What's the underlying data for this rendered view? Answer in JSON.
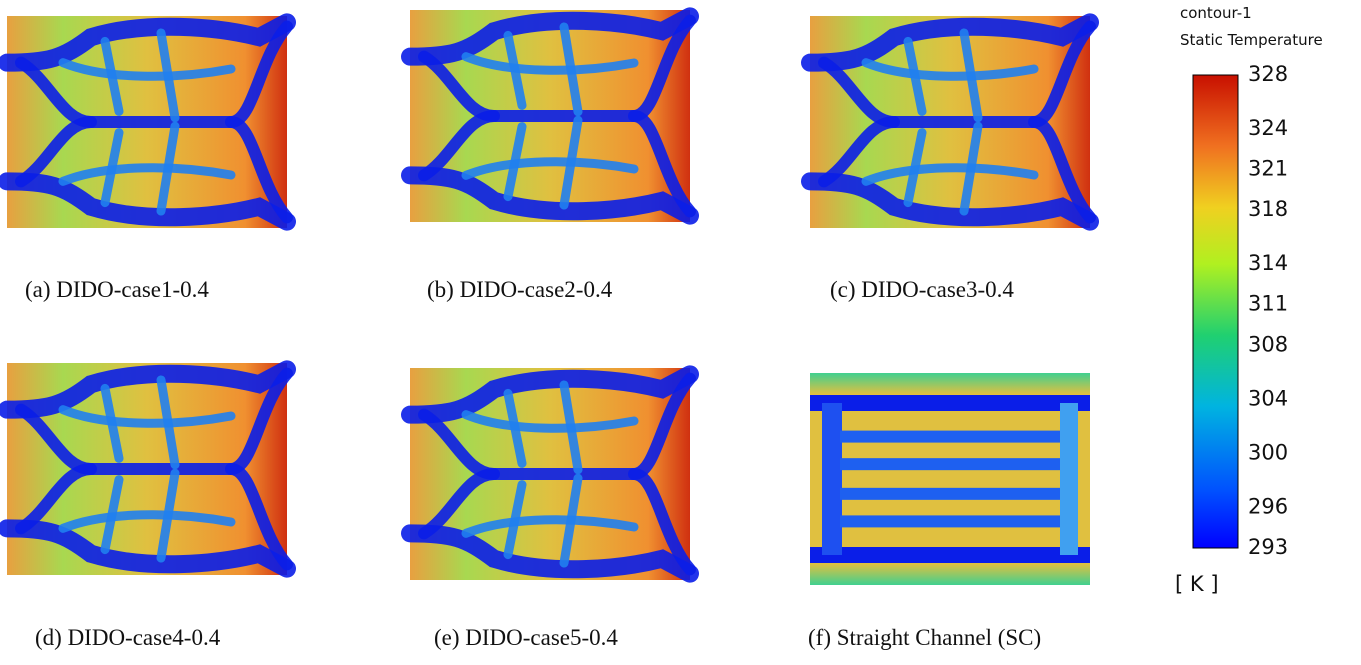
{
  "panels": [
    {
      "caption": "(a) DIDO-case1-0.4"
    },
    {
      "caption": "(b) DIDO-case2-0.4"
    },
    {
      "caption": "(c) DIDO-case3-0.4"
    },
    {
      "caption": "(d) DIDO-case4-0.4"
    },
    {
      "caption": "(e) DIDO-case5-0.4"
    },
    {
      "caption": "(f) Straight Channel (SC)"
    }
  ],
  "colorbar": {
    "title": "contour-1",
    "subtitle": "Static Temperature",
    "range": [
      293,
      328
    ],
    "ticks": [
      328,
      324,
      321,
      318,
      314,
      311,
      308,
      304,
      300,
      296,
      293
    ],
    "unit": "[ K ]"
  }
}
